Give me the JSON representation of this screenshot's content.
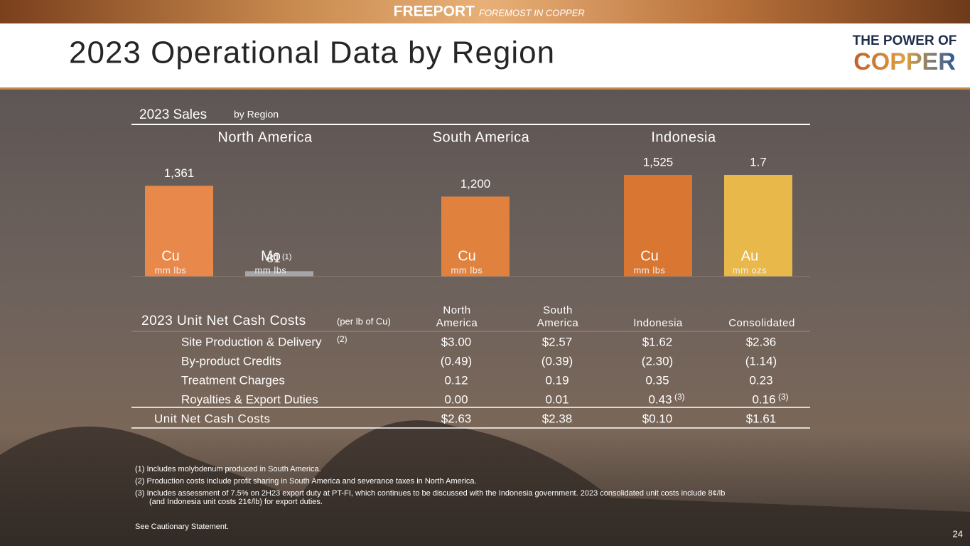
{
  "header": {
    "brand": "FREEPORT",
    "tagline": "FOREMOST IN COPPER",
    "title": "2023 Operational Data by Region",
    "logo": [
      "THE POWER OF",
      "COPPER"
    ]
  },
  "chart_data": {
    "type": "bar",
    "title": "2023 Sales",
    "subtitle": "by Region",
    "groups": [
      {
        "name": "North America",
        "bars": [
          {
            "label": "Cu",
            "unit": "mm lbs",
            "value": 1361,
            "value_label": "1,361",
            "color": "#e8884a"
          },
          {
            "label": "Mo",
            "unit": "mm lbs",
            "value": 81,
            "note": "(1)",
            "color": "#a6a6a6"
          }
        ]
      },
      {
        "name": "South America",
        "bars": [
          {
            "label": "Cu",
            "unit": "mm lbs",
            "value": 1200,
            "value_label": "1,200",
            "color": "#e0823e"
          }
        ]
      },
      {
        "name": "Indonesia",
        "bars": [
          {
            "label": "Cu",
            "unit": "mm lbs",
            "value": 1525,
            "value_label": "1,525",
            "color": "#d87632"
          },
          {
            "label": "Au",
            "unit": "mm ozs",
            "value": 1.7,
            "color": "#e8b84a"
          }
        ]
      }
    ]
  },
  "table": {
    "title": "2023 Unit Net Cash Costs",
    "note": "(per lb of Cu)",
    "columns": [
      [
        "North",
        "America"
      ],
      [
        "South",
        "America"
      ],
      [
        "Indonesia"
      ],
      [
        "Consolidated"
      ]
    ],
    "rows": [
      {
        "label": "Site Production & Delivery",
        "ref": "(2)",
        "cells": [
          "$3.00",
          "$2.57",
          "$1.62",
          "$2.36"
        ]
      },
      {
        "label": "By-product Credits",
        "cells": [
          "(0.49)",
          "(0.39)",
          "(2.30)",
          "(1.14)"
        ]
      },
      {
        "label": "Treatment Charges",
        "cells": [
          "0.12",
          "0.19",
          "0.35",
          "0.23"
        ]
      },
      {
        "label": "Royalties & Export Duties",
        "cells": [
          "0.00",
          "0.01",
          "0.43",
          "0.16"
        ],
        "cell_refs": [
          null,
          null,
          "(3)",
          "(3)"
        ]
      }
    ],
    "total": {
      "label": "Unit Net Cash Costs",
      "cells": [
        "$2.63",
        "$2.38",
        "$0.10",
        "$1.61"
      ]
    }
  },
  "footnotes": [
    [
      "(1) Includes molybdenum produced in South America."
    ],
    [
      "(2) Production costs include profit sharing in South America and severance taxes in North America."
    ],
    [
      "(3) Includes assessment of 7.5% on 2H23 export duty at PT-FI, which continues to be discussed with the Indonesia government. 2023 consolidated unit costs include 8¢/lb",
      "(and Indonesia unit costs 21¢/lb) for export duties."
    ]
  ],
  "cautionary": "See Cautionary Statement.",
  "page_number": "24"
}
